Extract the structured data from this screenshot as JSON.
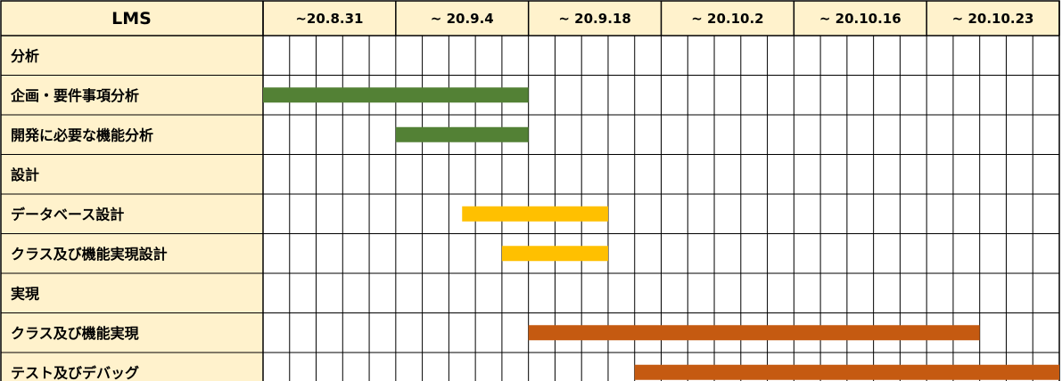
{
  "chart_data": {
    "type": "gantt",
    "title": "LMS",
    "weeks": [
      "~20.8.31",
      "~ 20.9.4",
      "~ 20.9.18",
      "~ 20.10.2",
      "~ 20.10.16",
      "~ 20.10.23"
    ],
    "unit": "day-column",
    "columns_total": 30,
    "rows": [
      {
        "label": "分析",
        "header": true
      },
      {
        "label": "企画・要件事項分析",
        "start": 0,
        "end": 10,
        "color": "#538135"
      },
      {
        "label": "開発に必要な機能分析",
        "start": 5,
        "end": 10,
        "color": "#538135"
      },
      {
        "label": "設計",
        "header": true
      },
      {
        "label": "データベース設計",
        "start": 7.5,
        "end": 13,
        "color": "#ffc000"
      },
      {
        "label": "クラス及び機能実現設計",
        "start": 9,
        "end": 13,
        "color": "#ffc000"
      },
      {
        "label": "実現",
        "header": true
      },
      {
        "label": "クラス及び機能実現",
        "start": 10,
        "end": 27,
        "color": "#c55a11"
      },
      {
        "label": "テスト及びデバッグ",
        "start": 14,
        "end": 30,
        "color": "#c55a11"
      }
    ],
    "colors": {
      "header_fill": "#fff2cc",
      "grid": "#000000"
    },
    "grid": true
  }
}
